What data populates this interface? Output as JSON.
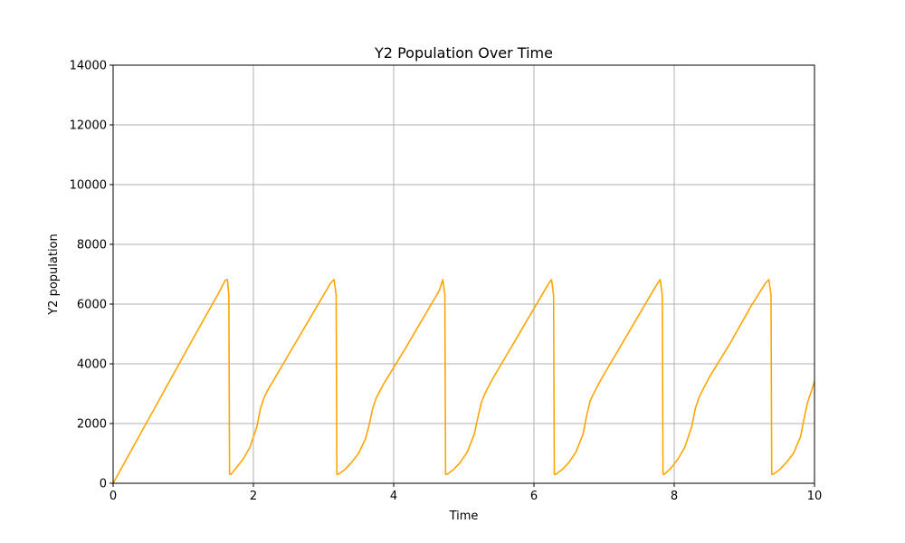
{
  "chart_data": {
    "type": "line",
    "title": "Y2 Population Over Time",
    "xlabel": "Time",
    "ylabel": "Y2 population",
    "xlim": [
      0,
      10
    ],
    "ylim": [
      0,
      14000
    ],
    "x_ticks": [
      "0",
      "2",
      "4",
      "6",
      "8",
      "10"
    ],
    "y_ticks": [
      "0",
      "2000",
      "4000",
      "6000",
      "8000",
      "10000",
      "12000",
      "14000"
    ],
    "grid": true,
    "series": [
      {
        "color": "#ffa500",
        "x": [
          0,
          0.4,
          0.8,
          1.2,
          1.5,
          1.6,
          1.63,
          1.65,
          1.66,
          1.68,
          1.75,
          1.85,
          1.95,
          2.05,
          2.1,
          2.15,
          2.2,
          2.3,
          2.6,
          2.9,
          3.1,
          3.15,
          3.18,
          3.19,
          3.21,
          3.3,
          3.4,
          3.5,
          3.6,
          3.65,
          3.7,
          3.75,
          3.85,
          4.15,
          4.45,
          4.65,
          4.7,
          4.73,
          4.74,
          4.76,
          4.85,
          4.95,
          5.05,
          5.15,
          5.2,
          5.25,
          5.3,
          5.4,
          5.7,
          6.0,
          6.2,
          6.25,
          6.28,
          6.29,
          6.31,
          6.4,
          6.5,
          6.6,
          6.7,
          6.75,
          6.8,
          6.85,
          6.95,
          7.25,
          7.55,
          7.75,
          7.8,
          7.83,
          7.84,
          7.86,
          7.95,
          8.05,
          8.15,
          8.25,
          8.3,
          8.35,
          8.4,
          8.5,
          8.8,
          9.1,
          9.3,
          9.35,
          9.38,
          9.39,
          9.41,
          9.5,
          9.6,
          9.7,
          9.8,
          9.85,
          9.9,
          10.0
        ],
        "y": [
          0,
          1700,
          3400,
          5100,
          6350,
          6800,
          6820,
          6300,
          300,
          300,
          500,
          800,
          1200,
          1900,
          2500,
          2850,
          3100,
          3500,
          4700,
          5900,
          6700,
          6820,
          6300,
          300,
          300,
          450,
          700,
          1000,
          1500,
          1950,
          2500,
          2850,
          3300,
          4450,
          5650,
          6450,
          6820,
          6300,
          300,
          300,
          450,
          700,
          1050,
          1650,
          2200,
          2700,
          3000,
          3450,
          4650,
          5850,
          6650,
          6820,
          6300,
          300,
          300,
          450,
          700,
          1050,
          1650,
          2250,
          2750,
          3000,
          3450,
          4650,
          5850,
          6650,
          6820,
          6300,
          300,
          300,
          500,
          800,
          1200,
          1900,
          2500,
          2850,
          3100,
          3550,
          4700,
          5950,
          6700,
          6820,
          6300,
          300,
          300,
          450,
          700,
          1000,
          1550,
          2150,
          2700,
          3400
        ]
      }
    ]
  }
}
